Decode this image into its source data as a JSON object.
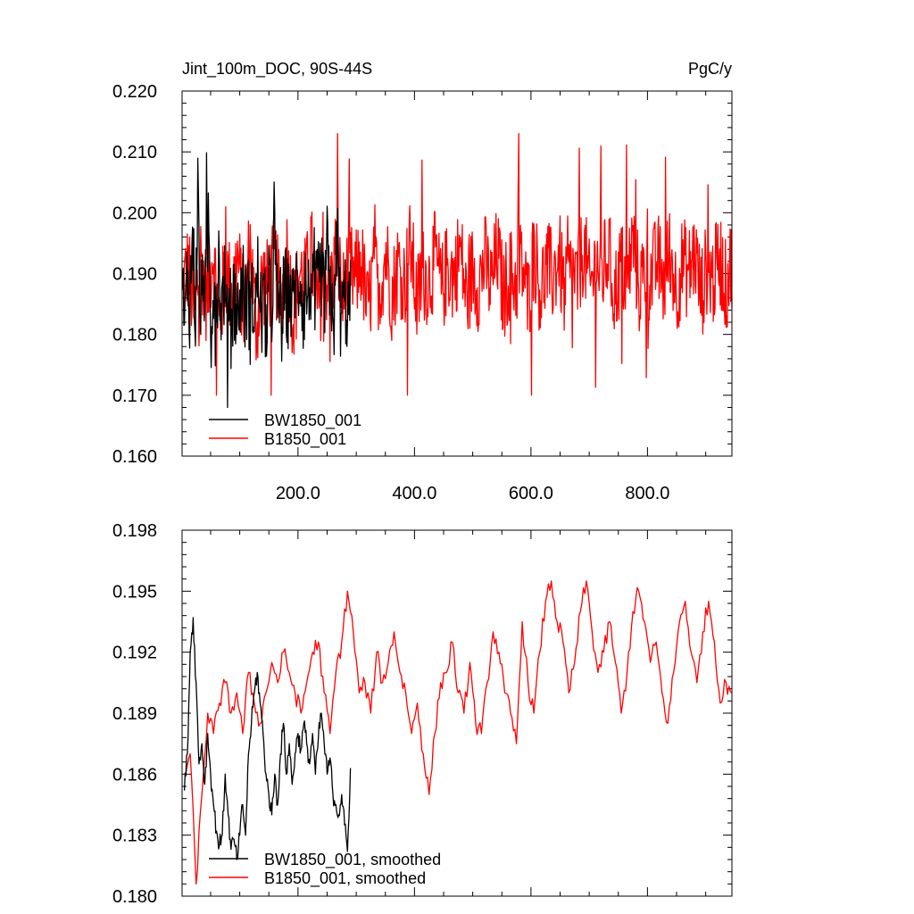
{
  "chart_data": [
    {
      "type": "line",
      "title": "Jint_100m_DOC, 90S-44S",
      "units": "PgC/y",
      "xlim": [
        1,
        945
      ],
      "ylim": [
        0.16,
        0.22
      ],
      "x_ticks": [
        200,
        400,
        600,
        800
      ],
      "x_tick_labels": [
        "200.0",
        "400.0",
        "600.0",
        "800.0"
      ],
      "y_ticks": [
        0.16,
        0.17,
        0.18,
        0.19,
        0.2,
        0.21,
        0.22
      ],
      "y_tick_labels": [
        "0.160",
        "0.170",
        "0.180",
        "0.190",
        "0.200",
        "0.210",
        "0.220"
      ],
      "legend_position": "bottom-left",
      "series": [
        {
          "name": "BW1850_001",
          "color": "#000000",
          "x_start": 1,
          "x_end": 290,
          "summary": {
            "mean": 0.186,
            "min": 0.168,
            "max": 0.215
          },
          "values": [
            0.19,
            0.176,
            0.194,
            0.184,
            0.205,
            0.18,
            0.215,
            0.178,
            0.196,
            0.183,
            0.209,
            0.176,
            0.193,
            0.185,
            0.197,
            0.181,
            0.191,
            0.176,
            0.19,
            0.183,
            0.188,
            0.179,
            0.186,
            0.192,
            0.182,
            0.188,
            0.18,
            0.186,
            0.184,
            0.194,
            0.181,
            0.185,
            0.176,
            0.188,
            0.18,
            0.208,
            0.183,
            0.186,
            0.179,
            0.19,
            0.184,
            0.188,
            0.181,
            0.192,
            0.186,
            0.195,
            0.182,
            0.19,
            0.185,
            0.192,
            0.181,
            0.186,
            0.189,
            0.194,
            0.182,
            0.203,
            0.184,
            0.187,
            0.18,
            0.205,
            0.183,
            0.181,
            0.186,
            0.182,
            0.184
          ]
        },
        {
          "name": "B1850_001",
          "color": "#ff0000",
          "x_start": 1,
          "x_end": 945,
          "summary": {
            "mean": 0.19,
            "min": 0.17,
            "max": 0.213
          },
          "values": [
            0.185,
            0.192,
            0.178,
            0.195,
            0.183,
            0.197,
            0.176,
            0.191,
            0.185,
            0.194,
            0.18,
            0.198,
            0.175,
            0.189,
            0.186,
            0.193,
            0.181,
            0.196,
            0.178,
            0.19,
            0.187,
            0.195,
            0.18,
            0.191,
            0.185,
            0.197,
            0.183,
            0.192,
            0.188,
            0.194,
            0.179,
            0.191,
            0.186,
            0.196,
            0.184,
            0.193,
            0.187,
            0.198,
            0.182,
            0.19,
            0.188,
            0.195,
            0.185,
            0.192,
            0.189,
            0.197,
            0.183,
            0.191,
            0.187,
            0.194,
            0.186,
            0.196,
            0.184,
            0.19,
            0.188,
            0.193,
            0.182,
            0.197,
            0.185,
            0.192,
            0.189,
            0.195,
            0.183,
            0.191,
            0.187,
            0.198,
            0.185,
            0.193,
            0.19,
            0.196,
            0.184,
            0.192,
            0.188,
            0.199,
            0.186,
            0.191,
            0.189,
            0.194,
            0.187,
            0.197,
            0.185,
            0.193,
            0.19,
            0.196,
            0.184,
            0.192,
            0.188,
            0.195,
            0.186,
            0.194
          ]
        }
      ]
    },
    {
      "type": "line",
      "title": "",
      "xlim": [
        1,
        945
      ],
      "ylim": [
        0.18,
        0.198
      ],
      "x_ticks": [
        200,
        400,
        600,
        800
      ],
      "y_ticks": [
        0.18,
        0.183,
        0.186,
        0.189,
        0.192,
        0.195,
        0.198
      ],
      "y_tick_labels": [
        "0.180",
        "0.183",
        "0.186",
        "0.189",
        "0.192",
        "0.195",
        "0.198"
      ],
      "legend_position": "bottom-left",
      "series": [
        {
          "name": "BW1850_001, smoothed",
          "color": "#000000",
          "x": [
            5,
            10,
            15,
            20,
            25,
            30,
            35,
            40,
            45,
            50,
            55,
            60,
            65,
            70,
            75,
            80,
            85,
            90,
            95,
            100,
            105,
            110,
            115,
            120,
            125,
            130,
            135,
            140,
            145,
            150,
            155,
            160,
            165,
            170,
            175,
            180,
            185,
            190,
            195,
            200,
            205,
            210,
            215,
            220,
            225,
            230,
            235,
            240,
            245,
            250,
            255,
            260,
            265,
            270,
            275,
            280,
            285,
            290
          ],
          "values": [
            0.1852,
            0.187,
            0.192,
            0.1937,
            0.1905,
            0.1865,
            0.1875,
            0.1855,
            0.188,
            0.186,
            0.1845,
            0.1832,
            0.1825,
            0.183,
            0.186,
            0.184,
            0.1823,
            0.1828,
            0.1818,
            0.183,
            0.1845,
            0.183,
            0.187,
            0.1885,
            0.19,
            0.191,
            0.1895,
            0.188,
            0.186,
            0.185,
            0.184,
            0.186,
            0.1845,
            0.187,
            0.1885,
            0.186,
            0.1875,
            0.1855,
            0.187,
            0.188,
            0.1872,
            0.1885,
            0.1875,
            0.1865,
            0.188,
            0.186,
            0.1878,
            0.189,
            0.1875,
            0.186,
            0.1868,
            0.185,
            0.1845,
            0.184,
            0.185,
            0.1835,
            0.1822,
            0.1863
          ]
        },
        {
          "name": "B1850_001, smoothed",
          "color": "#ff0000",
          "x": [
            5,
            15,
            25,
            35,
            45,
            55,
            65,
            75,
            85,
            95,
            105,
            115,
            125,
            135,
            145,
            155,
            165,
            175,
            185,
            195,
            205,
            215,
            225,
            235,
            245,
            255,
            265,
            275,
            285,
            295,
            305,
            315,
            325,
            335,
            345,
            355,
            365,
            375,
            385,
            395,
            405,
            415,
            425,
            435,
            445,
            455,
            465,
            475,
            485,
            495,
            505,
            515,
            525,
            535,
            545,
            555,
            565,
            575,
            585,
            595,
            605,
            615,
            625,
            635,
            645,
            655,
            665,
            675,
            685,
            695,
            705,
            715,
            725,
            735,
            745,
            755,
            765,
            775,
            785,
            795,
            805,
            815,
            825,
            835,
            845,
            855,
            865,
            875,
            885,
            895,
            905,
            915,
            925,
            935,
            945
          ],
          "values": [
            0.186,
            0.187,
            0.1806,
            0.185,
            0.189,
            0.188,
            0.1895,
            0.1905,
            0.189,
            0.19,
            0.188,
            0.191,
            0.1895,
            0.1885,
            0.19,
            0.1915,
            0.1905,
            0.192,
            0.191,
            0.19,
            0.189,
            0.1905,
            0.192,
            0.1925,
            0.19,
            0.188,
            0.191,
            0.1925,
            0.195,
            0.193,
            0.19,
            0.1905,
            0.189,
            0.192,
            0.1905,
            0.1915,
            0.193,
            0.191,
            0.19,
            0.188,
            0.1895,
            0.187,
            0.185,
            0.188,
            0.1905,
            0.191,
            0.1925,
            0.19,
            0.189,
            0.1915,
            0.1885,
            0.188,
            0.1905,
            0.193,
            0.192,
            0.19,
            0.189,
            0.1875,
            0.1935,
            0.1905,
            0.189,
            0.192,
            0.1945,
            0.1955,
            0.1935,
            0.1925,
            0.19,
            0.1915,
            0.194,
            0.1955,
            0.193,
            0.191,
            0.192,
            0.1935,
            0.1915,
            0.189,
            0.191,
            0.194,
            0.195,
            0.1935,
            0.1915,
            0.1925,
            0.19,
            0.1885,
            0.191,
            0.1935,
            0.1945,
            0.192,
            0.1905,
            0.193,
            0.1945,
            0.1925,
            0.1895,
            0.1905,
            0.19
          ]
        }
      ]
    }
  ]
}
